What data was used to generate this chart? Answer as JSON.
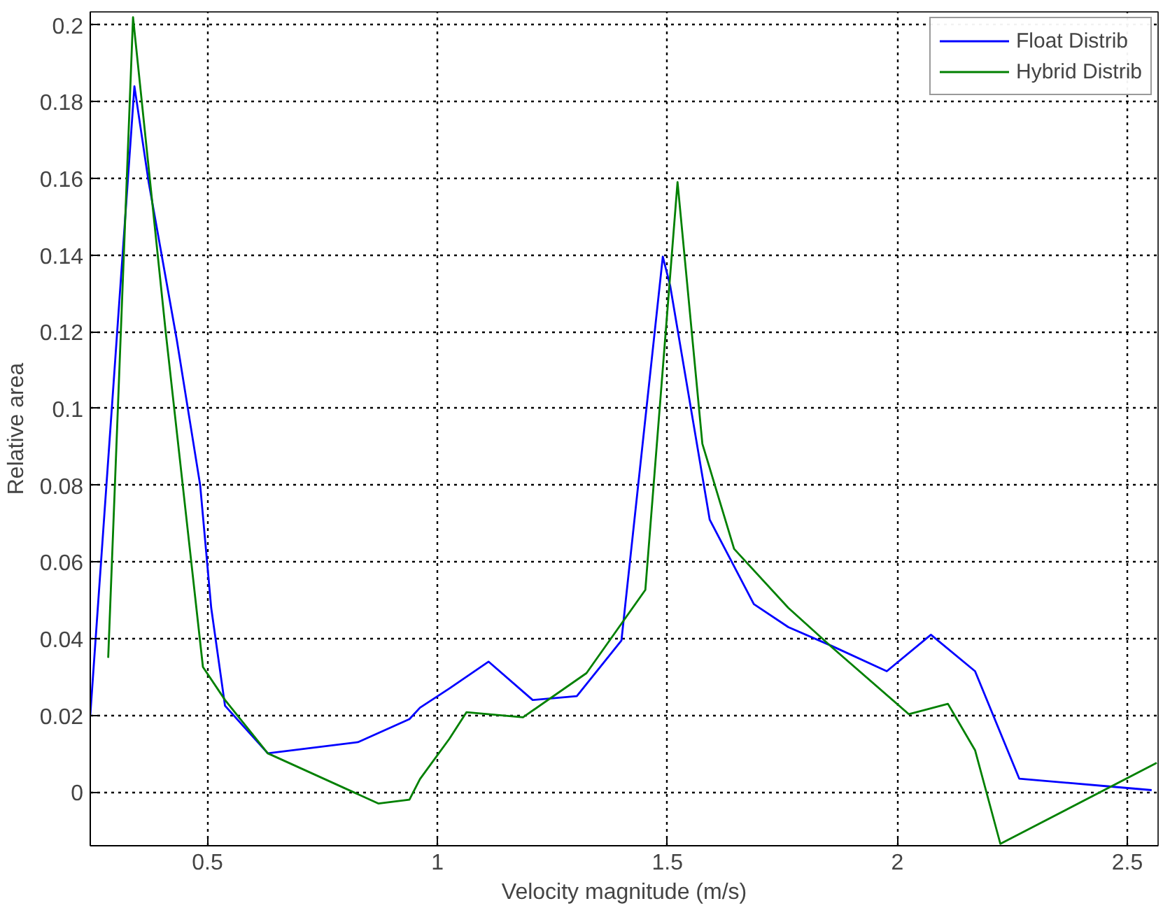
{
  "chart_data": {
    "type": "line",
    "xlabel": "Velocity magnitude (m/s)",
    "ylabel": "Relative area",
    "xlim": [
      0.245,
      2.567
    ],
    "ylim": [
      -0.014,
      0.2034
    ],
    "xticks": [
      0.5,
      1,
      1.5,
      2,
      2.5
    ],
    "yticks": [
      0,
      0.02,
      0.04,
      0.06,
      0.08,
      0.1,
      0.12,
      0.14,
      0.16,
      0.18,
      0.2
    ],
    "grid": true,
    "legend": "top right",
    "line_style": "solid",
    "marker": "none",
    "series": [
      {
        "name": "Float Distrib",
        "color": "#0000ff",
        "x": [
          0.245,
          0.341,
          0.372,
          0.433,
          0.484,
          0.508,
          0.538,
          0.631,
          0.827,
          0.939,
          0.962,
          1.026,
          1.111,
          1.207,
          1.303,
          1.4,
          1.49,
          1.506,
          1.592,
          1.688,
          1.763,
          1.859,
          1.977,
          2.073,
          2.169,
          2.265,
          2.457,
          2.553
        ],
        "values": [
          0.02,
          0.184,
          0.159,
          0.118,
          0.08,
          0.048,
          0.0225,
          0.0101,
          0.013,
          0.019,
          0.022,
          0.027,
          0.034,
          0.024,
          0.025,
          0.0395,
          0.1396,
          0.132,
          0.071,
          0.049,
          0.043,
          0.038,
          0.0315,
          0.041,
          0.0315,
          0.0035,
          0.0015,
          0.0005
        ]
      },
      {
        "name": "Hybrid Distrib",
        "color": "#008000",
        "x": [
          0.284,
          0.338,
          0.409,
          0.49,
          0.538,
          0.631,
          0.872,
          0.939,
          0.962,
          1.026,
          1.063,
          1.186,
          1.324,
          1.452,
          1.522,
          1.576,
          1.645,
          1.763,
          1.859,
          2.025,
          2.11,
          2.169,
          2.224,
          2.564
        ],
        "values": [
          0.035,
          0.202,
          0.12,
          0.0326,
          0.024,
          0.0101,
          -0.003,
          -0.002,
          0.0034,
          0.0139,
          0.0208,
          0.0195,
          0.031,
          0.0527,
          0.159,
          0.0908,
          0.0634,
          0.048,
          0.0376,
          0.0203,
          0.023,
          0.0109,
          -0.0135,
          0.0076
        ]
      }
    ]
  }
}
